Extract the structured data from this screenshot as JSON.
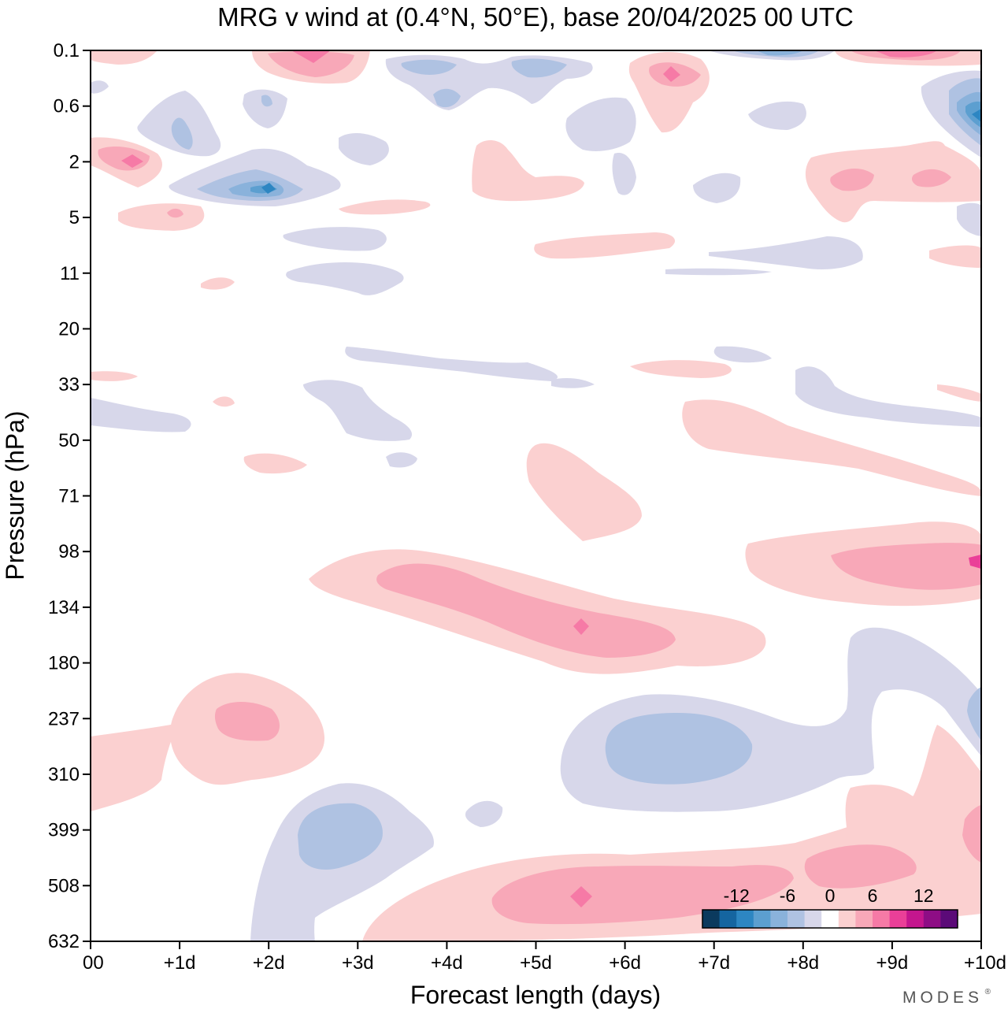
{
  "chart_data": {
    "type": "heatmap",
    "title": "MRG v wind at (0.4°N, 50°E),  base 20/04/2025  00 UTC",
    "xlabel": "Forecast length (days)",
    "ylabel": "Pressure (hPa)",
    "x_ticks": [
      "00",
      "+1d",
      "+2d",
      "+3d",
      "+4d",
      "+5d",
      "+6d",
      "+7d",
      "+8d",
      "+9d",
      "+10d"
    ],
    "x_range_days": [
      0,
      10
    ],
    "y_ticks": [
      "0.1",
      "0.6",
      "2",
      "5",
      "11",
      "20",
      "33",
      "50",
      "71",
      "98",
      "134",
      "180",
      "237",
      "310",
      "399",
      "508",
      "632"
    ],
    "y_scale": "log",
    "colorbar": {
      "labels": [
        "-12",
        "-6",
        "0",
        "6",
        "12"
      ],
      "levels": [
        -14,
        -12,
        -10,
        -8,
        -6,
        -4,
        -2,
        2,
        4,
        6,
        8,
        10,
        12,
        14
      ],
      "colors": [
        "#0b3a5e",
        "#1565a0",
        "#2d86c2",
        "#5c9fd0",
        "#8ab2db",
        "#afc2e2",
        "#d7d7ea",
        "#ffffff",
        "#fbd0d0",
        "#f8a8b8",
        "#f67aa6",
        "#ea3f98",
        "#c4168e",
        "#8e0d85",
        "#5b0a78"
      ]
    },
    "regions": [
      {
        "name": "Upper-tropospheric positive v core",
        "x": [
          3,
          8
        ],
        "y": [
          98,
          180
        ],
        "v": 6
      },
      {
        "name": "Upper-tropospheric positive v peak",
        "x": 5.5,
        "y": 130,
        "v": 10
      },
      {
        "name": "Lower-tropospheric positive v core",
        "x": [
          2.5,
          10
        ],
        "y": [
          399,
          632
        ],
        "v": 6
      },
      {
        "name": "Lower-tropospheric positive v peak",
        "x": 5.5,
        "y": 560,
        "v": 10
      },
      {
        "name": "Positive v band",
        "x": [
          8,
          10
        ],
        "y": [
          90,
          130
        ],
        "v": 6
      },
      {
        "name": "Positive v lobe",
        "x": [
          1,
          2.7
        ],
        "y": [
          180,
          330
        ],
        "v": 6
      },
      {
        "name": "Negative v lobe",
        "x": [
          5.5,
          9
        ],
        "y": [
          200,
          380
        ],
        "v": -4
      },
      {
        "name": "Negative v lobe",
        "x": [
          2,
          4
        ],
        "y": [
          330,
          632
        ],
        "v": -4
      },
      {
        "name": "Stratospheric negative v peak",
        "x": 2,
        "y": 3.2,
        "v": -10
      },
      {
        "name": "Stratospheric negative v peak",
        "x": 10,
        "y": 0.8,
        "v": -10
      },
      {
        "name": "Stratospheric positive v peak",
        "x": 0.5,
        "y": 2,
        "v": 10
      },
      {
        "name": "Stratospheric positive v peak",
        "x": 6.5,
        "y": 0.35,
        "v": 10
      }
    ]
  },
  "branding": {
    "text": "MODES"
  }
}
